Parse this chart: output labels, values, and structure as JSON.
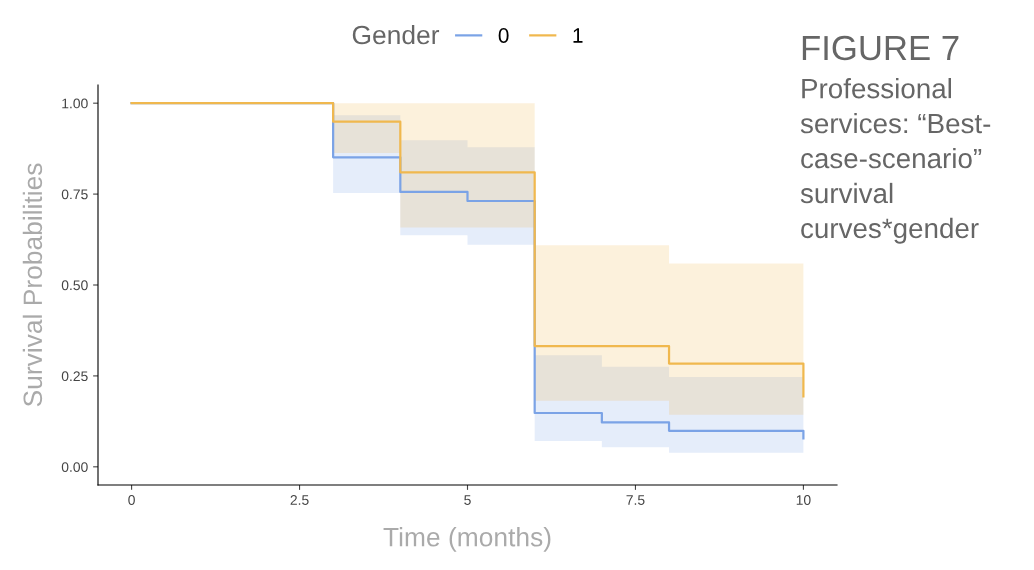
{
  "chart_data": {
    "type": "step",
    "title": "FIGURE 7",
    "subtitle": "Professional services: “Best-case-scenario” survival curves*gender",
    "xlabel": "Time (months)",
    "ylabel": "Survival Probabilities",
    "legend_title": "Gender",
    "legend": "top",
    "grid": false,
    "xlim": [
      -0.5,
      10.5
    ],
    "xticks": [
      0,
      2.5,
      5,
      7.5,
      10
    ],
    "ylim": [
      -0.05,
      1.05
    ],
    "yticks": [
      {
        "value": 0,
        "label": "0.00"
      },
      {
        "value": 0.25,
        "label": "0.25"
      },
      {
        "value": 0.5,
        "label": "0.50"
      },
      {
        "value": 0.75,
        "label": "0.75"
      },
      {
        "value": 1,
        "label": "1.00"
      }
    ],
    "series": [
      {
        "name": "0",
        "color": "#7ba3e6",
        "x": [
          0,
          3,
          4,
          5,
          6,
          7,
          8,
          10
        ],
        "values": [
          1,
          0.851,
          0.756,
          0.731,
          0.148,
          0.122,
          0.099,
          0.078
        ],
        "lower": [
          1,
          0.753,
          0.637,
          0.611,
          0.071,
          0.054,
          0.039,
          0.039
        ],
        "upper": [
          1,
          0.967,
          0.898,
          0.879,
          0.307,
          0.275,
          0.247,
          0.247
        ]
      },
      {
        "name": "1",
        "color": "#f0b84e",
        "x": [
          0,
          3,
          4,
          6,
          8,
          10
        ],
        "values": [
          1,
          0.949,
          0.81,
          0.332,
          0.284,
          0.194
        ],
        "lower": [
          1,
          0.863,
          0.658,
          0.182,
          0.143,
          0.143
        ],
        "upper": [
          1,
          1,
          1,
          0.609,
          0.559,
          0.559
        ]
      }
    ]
  }
}
